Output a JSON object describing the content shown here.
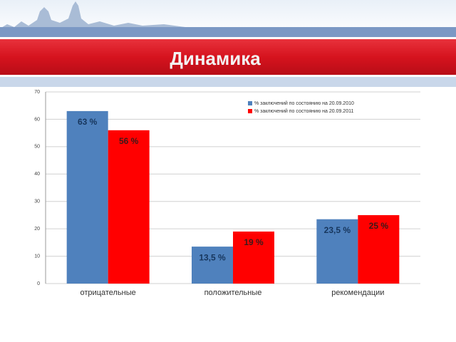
{
  "chart_data": {
    "type": "bar",
    "title": "Динамика",
    "categories": [
      "отрицательные",
      "положительные",
      "рекомендации"
    ],
    "series": [
      {
        "name": "% заключений по состоянию на 20.09.2010",
        "color": "#4f81bd",
        "values": [
          63,
          13.5,
          23.5
        ],
        "value_labels": [
          "63 %",
          "13,5 %",
          "23,5 %"
        ]
      },
      {
        "name": "% заключений по состоянию на 20.09.2011",
        "color": "#ff0000",
        "values": [
          56,
          19,
          25
        ],
        "value_labels": [
          "56 %",
          "19 %",
          "25 %"
        ]
      }
    ],
    "ylim": [
      0,
      70
    ],
    "yticks": [
      0,
      10,
      20,
      30,
      40,
      50,
      60,
      70
    ],
    "grid": true,
    "legend": "top-right"
  }
}
